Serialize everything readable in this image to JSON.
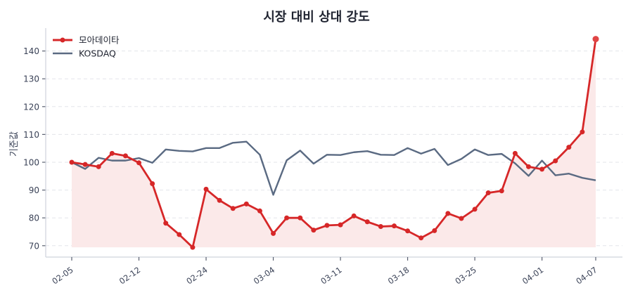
{
  "chart_data": {
    "type": "line",
    "title": "시장 대비 상대 강도",
    "xlabel": "",
    "ylabel": "기준값",
    "ylim": [
      66,
      148
    ],
    "yticks": [
      70,
      80,
      90,
      100,
      110,
      120,
      130,
      140
    ],
    "xtick_labels": [
      {
        "label": "02-05",
        "index": 0
      },
      {
        "label": "02-12",
        "index": 5
      },
      {
        "label": "02-24",
        "index": 10
      },
      {
        "label": "03-04",
        "index": 15
      },
      {
        "label": "03-11",
        "index": 20
      },
      {
        "label": "03-18",
        "index": 25
      },
      {
        "label": "03-25",
        "index": 30
      },
      {
        "label": "04-01",
        "index": 35
      },
      {
        "label": "04-07",
        "index": 39
      }
    ],
    "grid": true,
    "legend_position": "upper left",
    "fill_baseline": 69.4,
    "series": [
      {
        "name": "모아데이타",
        "color": "#d62728",
        "markers": true,
        "fill": true,
        "values": [
          100,
          99.2,
          98.4,
          103.2,
          102.3,
          99.8,
          92.3,
          78.1,
          74.0,
          69.4,
          90.3,
          86.3,
          83.4,
          85.0,
          82.5,
          74.4,
          80.0,
          80.0,
          75.6,
          77.3,
          77.5,
          80.7,
          78.6,
          76.9,
          77.1,
          75.3,
          72.8,
          75.4,
          81.6,
          79.8,
          83.1,
          89.0,
          89.7,
          103.2,
          98.4,
          97.5,
          100.5,
          105.4,
          110.9,
          144.3
        ]
      },
      {
        "name": "KOSDAQ",
        "color": "#5a6a82",
        "markers": false,
        "fill": false,
        "values": [
          100,
          97.6,
          101.6,
          100.6,
          100.6,
          101.5,
          99.8,
          104.6,
          104.1,
          103.9,
          105.1,
          105.1,
          107.0,
          107.4,
          102.7,
          88.3,
          100.7,
          104.2,
          99.5,
          102.7,
          102.6,
          103.6,
          104.0,
          102.7,
          102.6,
          105.1,
          103.1,
          104.8,
          99.0,
          101.2,
          104.6,
          102.6,
          103.0,
          99.6,
          95.1,
          100.6,
          95.3,
          95.9,
          94.4,
          93.5
        ]
      }
    ]
  }
}
